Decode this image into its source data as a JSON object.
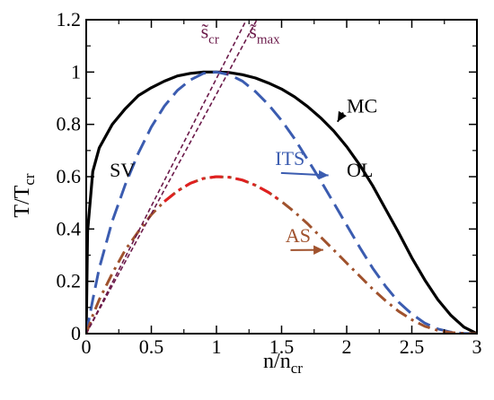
{
  "chart_data": {
    "type": "line",
    "xlabel": {
      "main": "n/n",
      "sub": "cr"
    },
    "ylabel": {
      "main": "T/T",
      "sub": "cr"
    },
    "xlim": [
      0,
      3
    ],
    "ylim": [
      0,
      1.2
    ],
    "x_ticks": [
      "0",
      "0.5",
      "1",
      "1.5",
      "2",
      "2.5",
      "3"
    ],
    "y_ticks": [
      "0",
      "0.2",
      "0.4",
      "0.6",
      "0.8",
      "1",
      "1.2"
    ],
    "grid": false,
    "series": [
      {
        "name": "MC",
        "style": "solid",
        "color": "#000000",
        "points": [
          [
            0,
            0
          ],
          [
            0.01,
            0.39
          ],
          [
            0.05,
            0.62
          ],
          [
            0.1,
            0.71
          ],
          [
            0.2,
            0.8
          ],
          [
            0.3,
            0.86
          ],
          [
            0.4,
            0.91
          ],
          [
            0.5,
            0.94
          ],
          [
            0.6,
            0.965
          ],
          [
            0.7,
            0.985
          ],
          [
            0.8,
            0.995
          ],
          [
            0.9,
            1.0
          ],
          [
            1.0,
            1.0
          ],
          [
            1.1,
            0.998
          ],
          [
            1.2,
            0.99
          ],
          [
            1.3,
            0.977
          ],
          [
            1.4,
            0.958
          ],
          [
            1.5,
            0.935
          ],
          [
            1.6,
            0.905
          ],
          [
            1.7,
            0.868
          ],
          [
            1.8,
            0.825
          ],
          [
            1.9,
            0.775
          ],
          [
            2.0,
            0.715
          ],
          [
            2.1,
            0.645
          ],
          [
            2.2,
            0.565
          ],
          [
            2.3,
            0.475
          ],
          [
            2.4,
            0.385
          ],
          [
            2.5,
            0.29
          ],
          [
            2.6,
            0.205
          ],
          [
            2.7,
            0.13
          ],
          [
            2.8,
            0.07
          ],
          [
            2.9,
            0.025
          ],
          [
            3.0,
            0.0
          ]
        ]
      },
      {
        "name": "ITS",
        "style": "dashed",
        "color": "#3b5cb0",
        "points": [
          [
            0,
            0
          ],
          [
            0.05,
            0.13
          ],
          [
            0.1,
            0.25
          ],
          [
            0.2,
            0.43
          ],
          [
            0.3,
            0.57
          ],
          [
            0.4,
            0.69
          ],
          [
            0.5,
            0.79
          ],
          [
            0.6,
            0.87
          ],
          [
            0.7,
            0.93
          ],
          [
            0.8,
            0.97
          ],
          [
            0.9,
            0.995
          ],
          [
            1.0,
            1.0
          ],
          [
            1.1,
            0.99
          ],
          [
            1.2,
            0.965
          ],
          [
            1.3,
            0.925
          ],
          [
            1.4,
            0.875
          ],
          [
            1.5,
            0.815
          ],
          [
            1.6,
            0.745
          ],
          [
            1.7,
            0.665
          ],
          [
            1.8,
            0.585
          ],
          [
            1.9,
            0.5
          ],
          [
            2.0,
            0.415
          ],
          [
            2.1,
            0.33
          ],
          [
            2.2,
            0.25
          ],
          [
            2.3,
            0.18
          ],
          [
            2.4,
            0.12
          ],
          [
            2.5,
            0.075
          ],
          [
            2.6,
            0.04
          ],
          [
            2.7,
            0.018
          ],
          [
            2.8,
            0.006
          ],
          [
            2.9,
            0.001
          ],
          [
            3.0,
            0.0
          ]
        ]
      },
      {
        "name": "AS",
        "style": "dashdot",
        "color": "#a0522d",
        "highlight_color": "#e02020",
        "points": [
          [
            0,
            0
          ],
          [
            0.05,
            0.07
          ],
          [
            0.1,
            0.13
          ],
          [
            0.2,
            0.23
          ],
          [
            0.3,
            0.32
          ],
          [
            0.4,
            0.39
          ],
          [
            0.5,
            0.455
          ],
          [
            0.6,
            0.505
          ],
          [
            0.7,
            0.545
          ],
          [
            0.8,
            0.575
          ],
          [
            0.9,
            0.593
          ],
          [
            1.0,
            0.6
          ],
          [
            1.1,
            0.598
          ],
          [
            1.2,
            0.587
          ],
          [
            1.3,
            0.567
          ],
          [
            1.4,
            0.54
          ],
          [
            1.5,
            0.505
          ],
          [
            1.6,
            0.465
          ],
          [
            1.7,
            0.42
          ],
          [
            1.8,
            0.37
          ],
          [
            1.9,
            0.32
          ],
          [
            2.0,
            0.27
          ],
          [
            2.1,
            0.22
          ],
          [
            2.2,
            0.17
          ],
          [
            2.3,
            0.125
          ],
          [
            2.4,
            0.085
          ],
          [
            2.5,
            0.053
          ],
          [
            2.6,
            0.028
          ],
          [
            2.7,
            0.012
          ],
          [
            2.8,
            0.004
          ],
          [
            2.9,
            0.001
          ],
          [
            3.0,
            0.0
          ]
        ]
      },
      {
        "name": "s̃cr",
        "style": "short-dashed",
        "color": "#6b1a4a",
        "points": [
          [
            0,
            0
          ],
          [
            1.23,
            1.2
          ]
        ]
      },
      {
        "name": "s̃max",
        "style": "short-dashed",
        "color": "#6b1a4a",
        "points": [
          [
            0,
            0
          ],
          [
            1.31,
            1.2
          ]
        ]
      }
    ],
    "annotations": [
      {
        "id": "mc",
        "text": "MC",
        "color": "#000000",
        "x": 2.0,
        "y": 0.845,
        "arrow_to": [
          1.93,
          0.81
        ]
      },
      {
        "id": "its",
        "text": "ITS",
        "color": "#3b5cb0",
        "x": 1.45,
        "y": 0.645,
        "arrow_to": [
          1.86,
          0.605
        ]
      },
      {
        "id": "as",
        "text": "AS",
        "color": "#a0522d",
        "x": 1.53,
        "y": 0.35,
        "arrow_to": [
          1.82,
          0.32
        ]
      },
      {
        "id": "sv",
        "text": "SV",
        "color": "#000000",
        "x": 0.18,
        "y": 0.6
      },
      {
        "id": "ol",
        "text": "OL",
        "color": "#000000",
        "x": 2.0,
        "y": 0.6
      },
      {
        "id": "scr",
        "text": "s̃",
        "sub": "cr",
        "color": "#6b1a4a",
        "x": 0.88,
        "y": 1.13
      },
      {
        "id": "smax",
        "text": "s̃",
        "sub": "max",
        "color": "#6b1a4a",
        "x": 1.25,
        "y": 1.13
      }
    ]
  }
}
